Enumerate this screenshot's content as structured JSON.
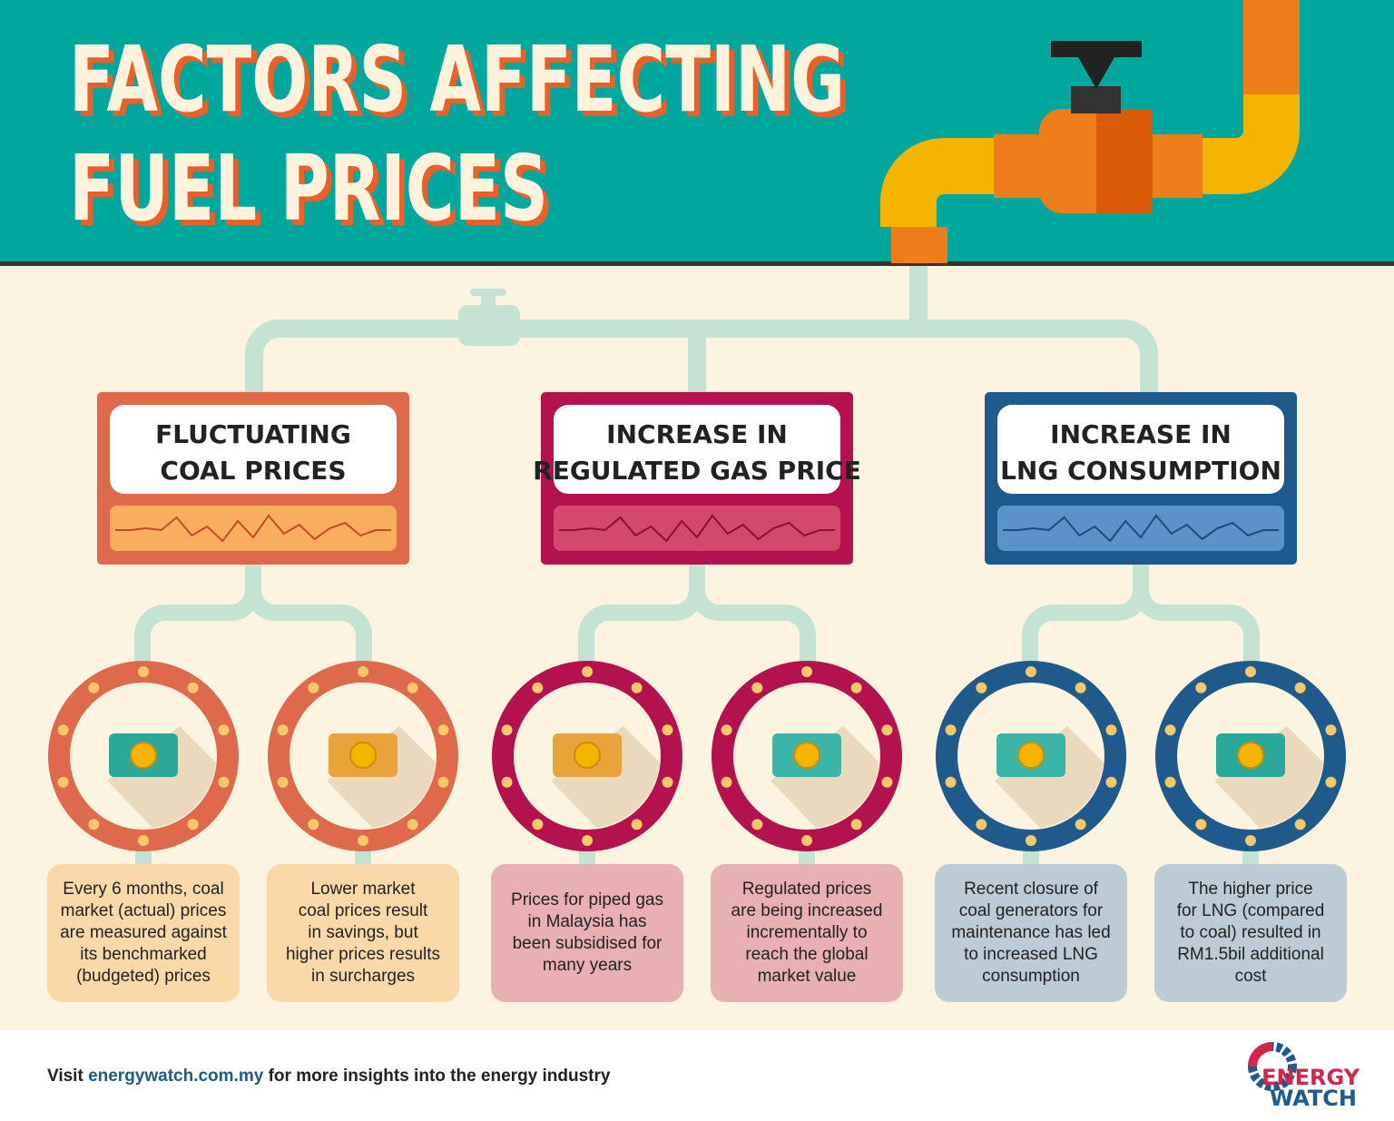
{
  "header": {
    "title_lines": [
      "FACTORS AFFECTING",
      "FUEL PRICES"
    ]
  },
  "factors": [
    {
      "title_lines": [
        "FLUCTUATING",
        "COAL PRICES"
      ],
      "details": [
        {
          "lines": [
            "Every 6 months, coal",
            "market (actual) prices",
            "are measured against",
            "its benchmarked",
            "(budgeted) prices"
          ]
        },
        {
          "lines": [
            "Lower market",
            "coal prices result",
            "in savings, but",
            "higher prices results",
            "in surcharges"
          ]
        }
      ]
    },
    {
      "title_lines": [
        "INCREASE IN",
        "REGULATED GAS PRICE"
      ],
      "details": [
        {
          "lines": [
            "Prices for piped gas",
            "in Malaysia has",
            "been subsidised for",
            "many years"
          ]
        },
        {
          "lines": [
            "Regulated prices",
            "are being increased",
            "incrementally to",
            "reach the global",
            "market value"
          ]
        }
      ]
    },
    {
      "title_lines": [
        "INCREASE IN",
        "LNG CONSUMPTION"
      ],
      "details": [
        {
          "lines": [
            "Recent closure of",
            "coal generators for",
            "maintenance has led",
            "to increased LNG",
            "consumption"
          ]
        },
        {
          "lines": [
            "The higher price",
            "for LNG (compared",
            "to coal) resulted in",
            "RM1.5bil additional",
            "cost"
          ]
        }
      ]
    }
  ],
  "footer": {
    "prefix": "Visit",
    "link": "energywatch.com.my",
    "suffix": "for more insights into the energy industry",
    "logo_lines": [
      "ENERGY",
      "WATCH"
    ]
  }
}
